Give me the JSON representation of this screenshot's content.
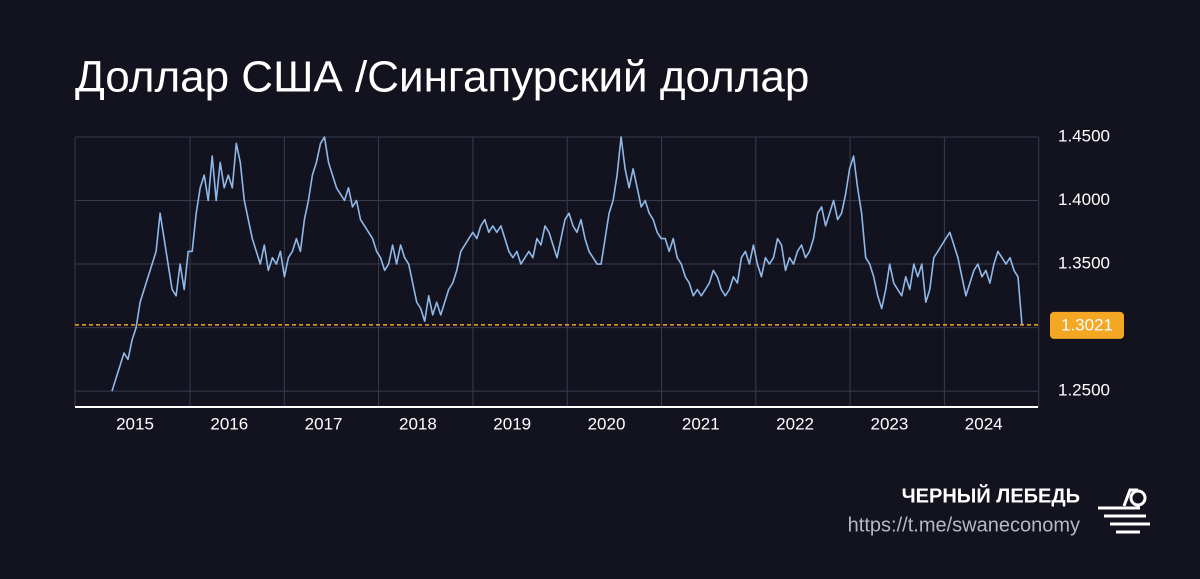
{
  "chart_data": {
    "type": "line",
    "title": "Доллар США /Сингапурский доллар",
    "x_tick_labels": [
      "2015",
      "2016",
      "2017",
      "2018",
      "2019",
      "2020",
      "2021",
      "2022",
      "2023",
      "2024"
    ],
    "series": [
      {
        "color": "#8fb8e8",
        "values": [
          1.25,
          1.26,
          1.27,
          1.28,
          1.275,
          1.29,
          1.3,
          1.32,
          1.33,
          1.34,
          1.35,
          1.36,
          1.39,
          1.37,
          1.35,
          1.33,
          1.325,
          1.35,
          1.33,
          1.36,
          1.36,
          1.39,
          1.41,
          1.42,
          1.4,
          1.435,
          1.4,
          1.43,
          1.41,
          1.42,
          1.41,
          1.445,
          1.43,
          1.4,
          1.385,
          1.37,
          1.36,
          1.35,
          1.365,
          1.345,
          1.355,
          1.35,
          1.36,
          1.34,
          1.355,
          1.36,
          1.37,
          1.36,
          1.385,
          1.4,
          1.42,
          1.43,
          1.445,
          1.45,
          1.43,
          1.42,
          1.41,
          1.405,
          1.4,
          1.41,
          1.395,
          1.4,
          1.385,
          1.38,
          1.375,
          1.37,
          1.36,
          1.355,
          1.345,
          1.35,
          1.365,
          1.35,
          1.365,
          1.355,
          1.35,
          1.335,
          1.32,
          1.315,
          1.305,
          1.325,
          1.31,
          1.32,
          1.31,
          1.32,
          1.33,
          1.335,
          1.345,
          1.36,
          1.365,
          1.37,
          1.375,
          1.37,
          1.38,
          1.385,
          1.375,
          1.38,
          1.375,
          1.38,
          1.37,
          1.36,
          1.355,
          1.36,
          1.35,
          1.355,
          1.36,
          1.355,
          1.37,
          1.365,
          1.38,
          1.375,
          1.365,
          1.355,
          1.37,
          1.385,
          1.39,
          1.38,
          1.375,
          1.385,
          1.37,
          1.36,
          1.355,
          1.35,
          1.35,
          1.37,
          1.39,
          1.4,
          1.42,
          1.45,
          1.425,
          1.41,
          1.425,
          1.41,
          1.395,
          1.4,
          1.39,
          1.385,
          1.375,
          1.37,
          1.37,
          1.36,
          1.37,
          1.355,
          1.35,
          1.34,
          1.335,
          1.325,
          1.33,
          1.325,
          1.33,
          1.335,
          1.345,
          1.34,
          1.33,
          1.325,
          1.33,
          1.34,
          1.335,
          1.355,
          1.36,
          1.35,
          1.365,
          1.35,
          1.34,
          1.355,
          1.35,
          1.355,
          1.37,
          1.365,
          1.345,
          1.355,
          1.35,
          1.36,
          1.365,
          1.355,
          1.36,
          1.37,
          1.39,
          1.395,
          1.38,
          1.39,
          1.4,
          1.385,
          1.39,
          1.405,
          1.425,
          1.435,
          1.41,
          1.39,
          1.355,
          1.35,
          1.34,
          1.325,
          1.315,
          1.33,
          1.35,
          1.335,
          1.33,
          1.325,
          1.34,
          1.33,
          1.35,
          1.34,
          1.35,
          1.32,
          1.33,
          1.355,
          1.36,
          1.365,
          1.37,
          1.375,
          1.365,
          1.355,
          1.34,
          1.325,
          1.335,
          1.345,
          1.35,
          1.34,
          1.345,
          1.335,
          1.35,
          1.36,
          1.355,
          1.35,
          1.355,
          1.345,
          1.34,
          1.3021
        ]
      }
    ],
    "ylim": [
      1.2375,
      1.45
    ],
    "yticks": [
      {
        "value": 1.25,
        "label": "1.2500"
      },
      {
        "value": 1.3,
        "label": ""
      },
      {
        "value": 1.35,
        "label": "1.3500"
      },
      {
        "value": 1.4,
        "label": "1.4000"
      },
      {
        "value": 1.45,
        "label": "1.4500"
      }
    ],
    "reference_line": {
      "value": 1.3021,
      "color": "#f5a623"
    },
    "grid": true
  },
  "footer": {
    "brand": "ЧЕРНЫЙ ЛЕБЕДЬ",
    "link": "https://t.me/swaneconomy"
  }
}
